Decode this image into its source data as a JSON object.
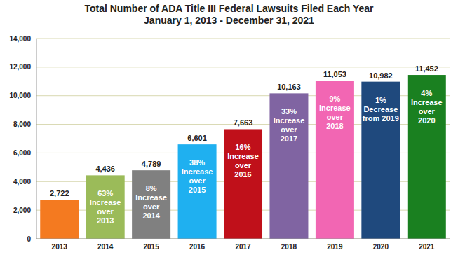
{
  "chart_data": {
    "type": "bar",
    "title": "Total Number of ADA Title III Federal Lawsuits Filed Each Year",
    "subtitle": "January 1, 2013 - December 31, 2021",
    "categories": [
      "2013",
      "2014",
      "2015",
      "2016",
      "2017",
      "2018",
      "2019",
      "2020",
      "2021"
    ],
    "values": [
      2722,
      4436,
      4789,
      6601,
      7663,
      10163,
      11053,
      10982,
      11452
    ],
    "value_labels": [
      "2,722",
      "4,436",
      "4,789",
      "6,601",
      "7,663",
      "10,163",
      "11,053",
      "10,982",
      "11,452"
    ],
    "annotations": [
      null,
      [
        "63%",
        "Increase",
        "over",
        "2013"
      ],
      [
        "8%",
        "Increase",
        "over",
        "2014"
      ],
      [
        "38%",
        "Increase",
        "over",
        "2015"
      ],
      [
        "16%",
        "Increase",
        "over",
        "2016"
      ],
      [
        "33%",
        "Increase",
        "over",
        "2017"
      ],
      [
        "9%",
        "Increase",
        "over",
        "2018"
      ],
      [
        "1%",
        "Decrease",
        "from 2019"
      ],
      [
        "4%",
        "Increase",
        "over",
        "2020"
      ]
    ],
    "colors": [
      "#f47a20",
      "#9bbb59",
      "#808080",
      "#1fb0f0",
      "#c0101a",
      "#8064a2",
      "#f266b3",
      "#1f497d",
      "#1a8020"
    ],
    "ylim": [
      0,
      14000
    ],
    "yticks": [
      0,
      {
        "value": 2000,
        "label": "2,000"
      },
      {
        "value": 4000,
        "label": "4,000"
      },
      {
        "value": 6000,
        "label": "6,000"
      },
      {
        "value": 8000,
        "label": "8,000"
      },
      {
        "value": 10000,
        "label": "10,000"
      },
      {
        "value": 12000,
        "label": "12,000"
      },
      {
        "value": 14000,
        "label": "14,000"
      }
    ],
    "grid": true,
    "data_labels": true
  }
}
